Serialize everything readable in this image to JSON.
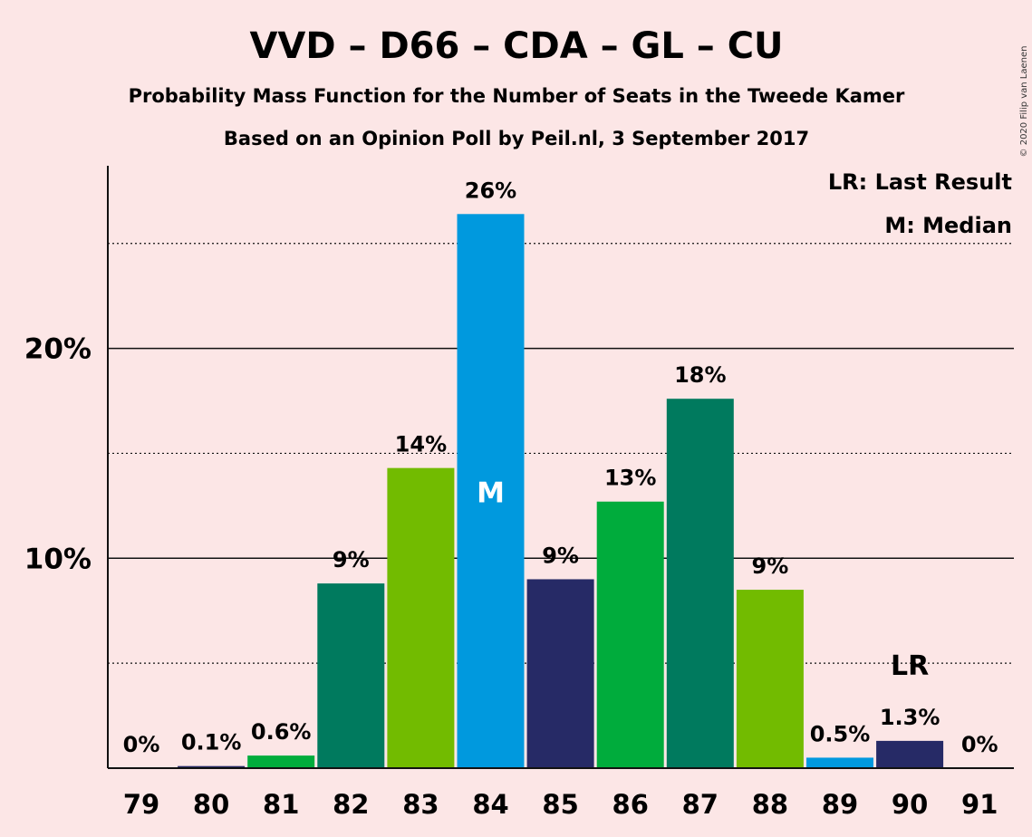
{
  "chart_data": {
    "type": "bar",
    "title": "VVD – D66 – CDA – GL – CU",
    "subtitle1": "Probability Mass Function for the Number of Seats in the Tweede Kamer",
    "subtitle2": "Based on an Opinion Poll by Peil.nl, 3 September 2017",
    "copyright": "© 2020 Filip van Laenen",
    "legend": {
      "lr": "LR: Last Result",
      "m": "M: Median"
    },
    "categories": [
      "79",
      "80",
      "81",
      "82",
      "83",
      "84",
      "85",
      "86",
      "87",
      "88",
      "89",
      "90",
      "91"
    ],
    "values": [
      0,
      0.1,
      0.6,
      8.8,
      14.3,
      26.4,
      9.0,
      12.7,
      17.6,
      8.5,
      0.5,
      1.3,
      0
    ],
    "labels": [
      "0%",
      "0.1%",
      "0.6%",
      "9%",
      "14%",
      "26%",
      "9%",
      "13%",
      "18%",
      "9%",
      "0.5%",
      "1.3%",
      "0%"
    ],
    "colors": [
      "#0099de",
      "#262a66",
      "#00ac3c",
      "#007a5e",
      "#72bb00",
      "#0099de",
      "#262a66",
      "#00ac3c",
      "#007a5e",
      "#72bb00",
      "#0099de",
      "#262a66",
      "#00ac3c"
    ],
    "ylim": [
      0,
      28.7
    ],
    "yticks": [
      {
        "value": 10,
        "label": "10%"
      },
      {
        "value": 20,
        "label": "20%"
      }
    ],
    "minor_gridlines": [
      5,
      15,
      25
    ],
    "median_index": 5,
    "median_marker": "M",
    "last_result_index": 11,
    "last_result_marker": "LR",
    "grid": true,
    "legend_position": "top-right"
  }
}
